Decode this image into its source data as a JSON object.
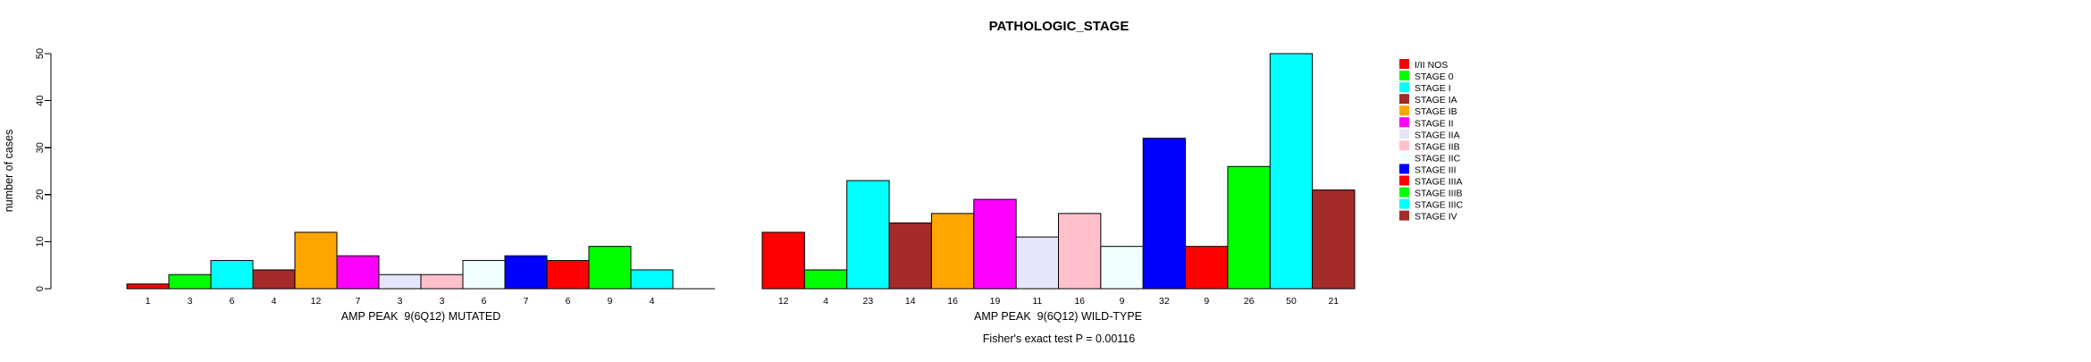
{
  "title": "PATHOLOGIC_STAGE",
  "footnote": "Fisher's exact test P = 0.00116",
  "chart_data": {
    "type": "bar",
    "title": "PATHOLOGIC_STAGE",
    "ylabel": "number of cases",
    "xlabel": "",
    "ylim": [
      0,
      50
    ],
    "yticks": [
      0,
      10,
      20,
      30,
      40,
      50
    ],
    "grid": false,
    "legend_position": "right",
    "categories": [
      "I/II NOS",
      "STAGE 0",
      "STAGE I",
      "STAGE IA",
      "STAGE IB",
      "STAGE II",
      "STAGE IIA",
      "STAGE IIB",
      "STAGE IIC",
      "STAGE III",
      "STAGE IIIA",
      "STAGE IIIB",
      "STAGE IIIC",
      "STAGE IV"
    ],
    "colors": [
      "#FF0000",
      "#00FF00",
      "#00FFFF",
      "#A52A2A",
      "#FFA500",
      "#FF00FF",
      "#E6E6FA",
      "#FFC0CB",
      "#F0FFFF",
      "#0000FF",
      "#FF0000",
      "#00FF00",
      "#00FFFF",
      "#A52A2A"
    ],
    "bar_border_color": "#000000",
    "groups": [
      {
        "label": "AMP PEAK  9(6Q12) MUTATED",
        "values": [
          1,
          3,
          6,
          4,
          12,
          7,
          3,
          3,
          6,
          7,
          6,
          9,
          4,
          0
        ],
        "bar_labels": [
          "1",
          "3",
          "6",
          "4",
          "12",
          "7",
          "3",
          "3",
          "6",
          "7",
          "6",
          "9",
          "4",
          ""
        ]
      },
      {
        "label": "AMP PEAK  9(6Q12) WILD-TYPE",
        "values": [
          12,
          4,
          23,
          14,
          16,
          19,
          11,
          16,
          9,
          32,
          9,
          26,
          50,
          21
        ],
        "bar_labels": [
          "12",
          "4",
          "23",
          "14",
          "16",
          "19",
          "11",
          "16",
          "9",
          "32",
          "9",
          "26",
          "50",
          "21"
        ]
      }
    ],
    "footnote": "Fisher's exact test P = 0.00116"
  }
}
